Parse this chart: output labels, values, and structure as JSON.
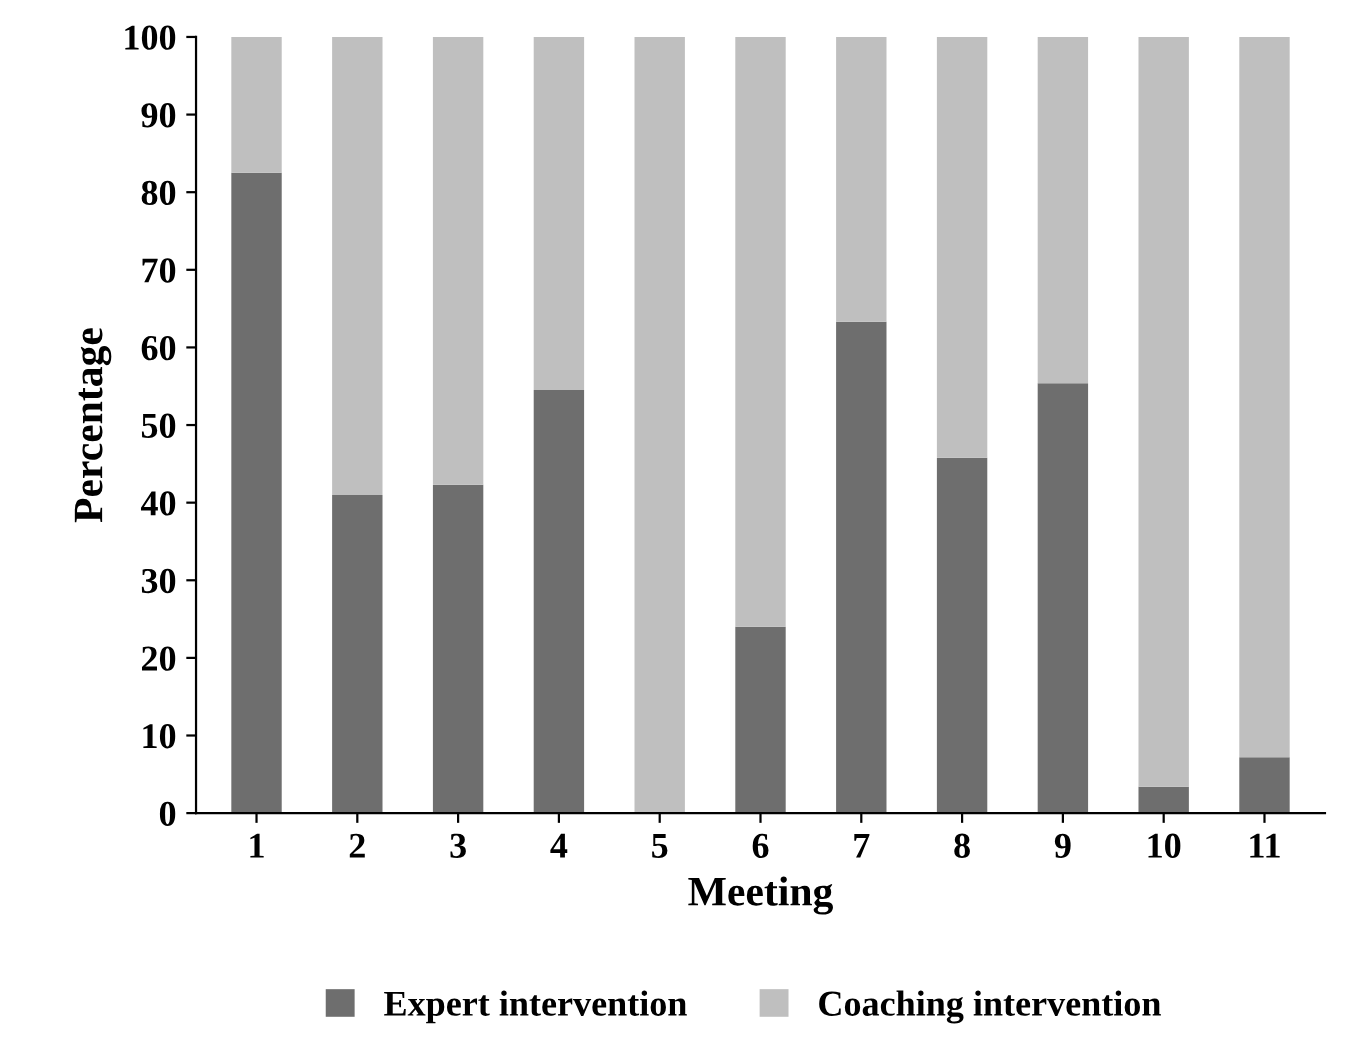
{
  "chart_data": {
    "type": "bar",
    "stacked": true,
    "xlabel": "Meeting",
    "ylabel": "Percentage",
    "categories": [
      "1",
      "2",
      "3",
      "4",
      "5",
      "6",
      "7",
      "8",
      "9",
      "10",
      "11"
    ],
    "series": [
      {
        "name": "Expert intervention",
        "color": "#6e6e6e",
        "values": [
          82.5,
          41,
          42.3,
          54.5,
          0,
          24,
          63.3,
          45.8,
          55.4,
          3.4,
          7.2
        ]
      },
      {
        "name": "Coaching intervention",
        "color": "#bfbfbf",
        "values": [
          17.5,
          59,
          57.7,
          45.5,
          100,
          76,
          36.7,
          54.2,
          44.6,
          96.6,
          92.8
        ]
      }
    ],
    "ylim": [
      0,
      100
    ],
    "yticks": [
      0,
      10,
      20,
      30,
      40,
      50,
      60,
      70,
      80,
      90,
      100
    ],
    "grid": false,
    "legend": "bottom"
  }
}
